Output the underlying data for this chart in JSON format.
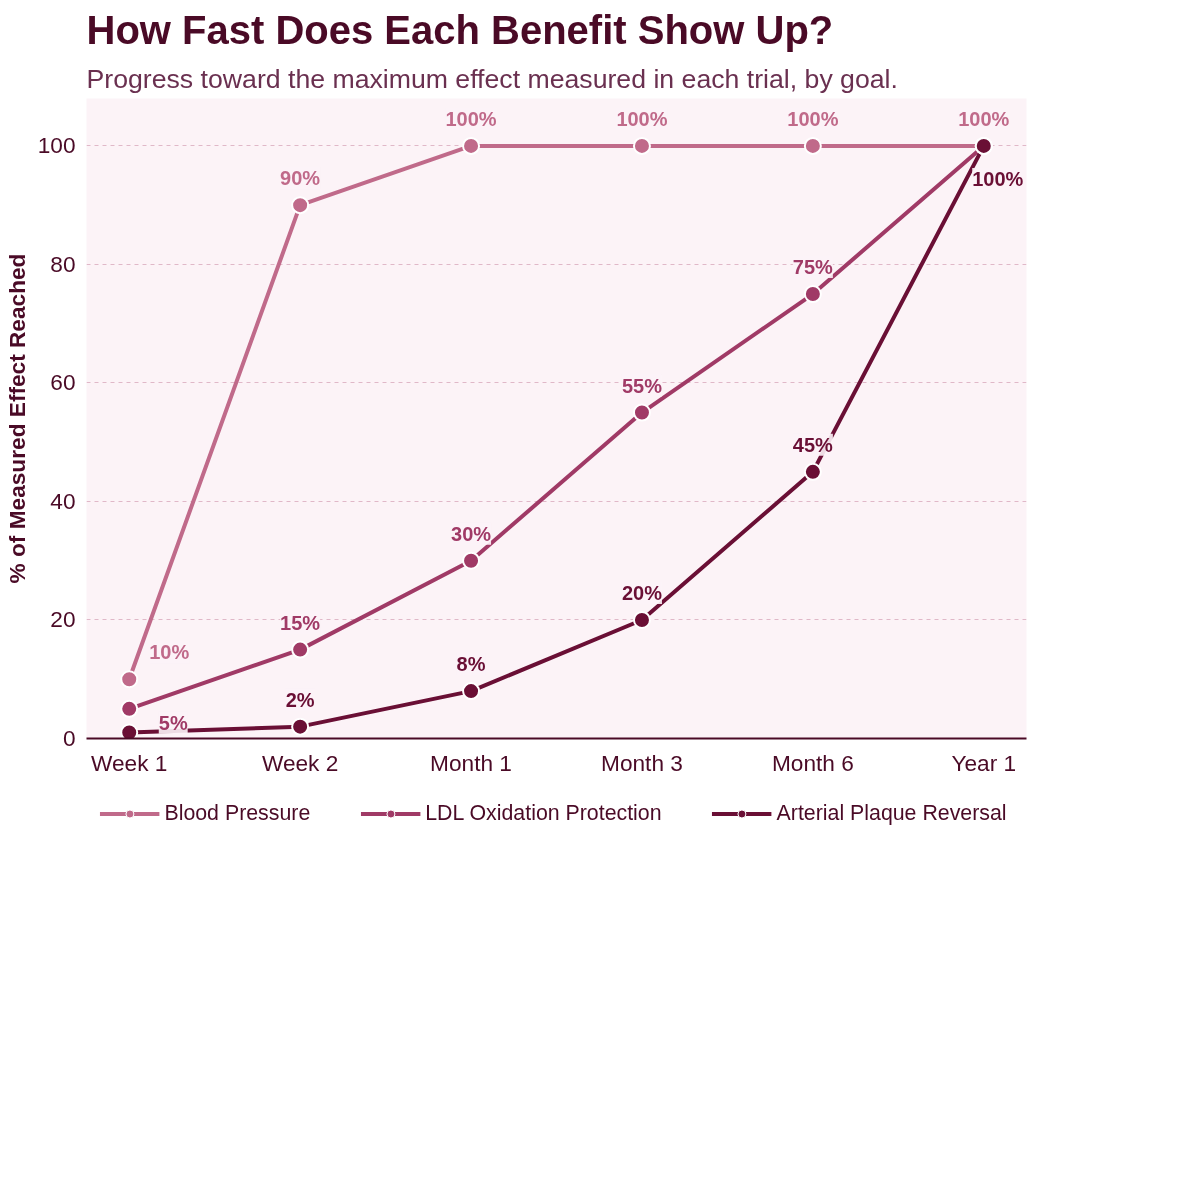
{
  "chart_data": {
    "type": "line",
    "title": "How Fast Does Each Benefit Show Up?",
    "subtitle": "Progress toward the maximum effect measured in each trial, by goal.",
    "ylabel": "% of Measured Effect Reached",
    "categories": [
      "Week 1",
      "Week 2",
      "Month 1",
      "Month 3",
      "Month 6",
      "Year 1"
    ],
    "series": [
      {
        "name": "Blood Pressure",
        "color": "#c06a8a",
        "values": [
          10,
          90,
          100,
          100,
          100,
          100
        ],
        "value_labels": [
          "10%",
          "90%",
          "100%",
          "100%",
          "100%",
          "100%"
        ]
      },
      {
        "name": "LDL Oxidation Protection",
        "color": "#a03a66",
        "values": [
          5,
          15,
          30,
          55,
          75,
          100
        ],
        "value_labels": [
          "5%",
          "15%",
          "30%",
          "55%",
          "75%",
          null
        ]
      },
      {
        "name": "Arterial Plaque Reversal",
        "color": "#6a0f35",
        "values": [
          1,
          2,
          8,
          20,
          45,
          100
        ],
        "value_labels": [
          null,
          "2%",
          "8%",
          "20%",
          "45%",
          "100%"
        ]
      }
    ],
    "ylim": [
      0,
      108
    ],
    "yticks": [
      0,
      20,
      40,
      60,
      80,
      100
    ],
    "grid": "y",
    "legend": "bottom",
    "marker": "circle",
    "line_style": "solid"
  }
}
